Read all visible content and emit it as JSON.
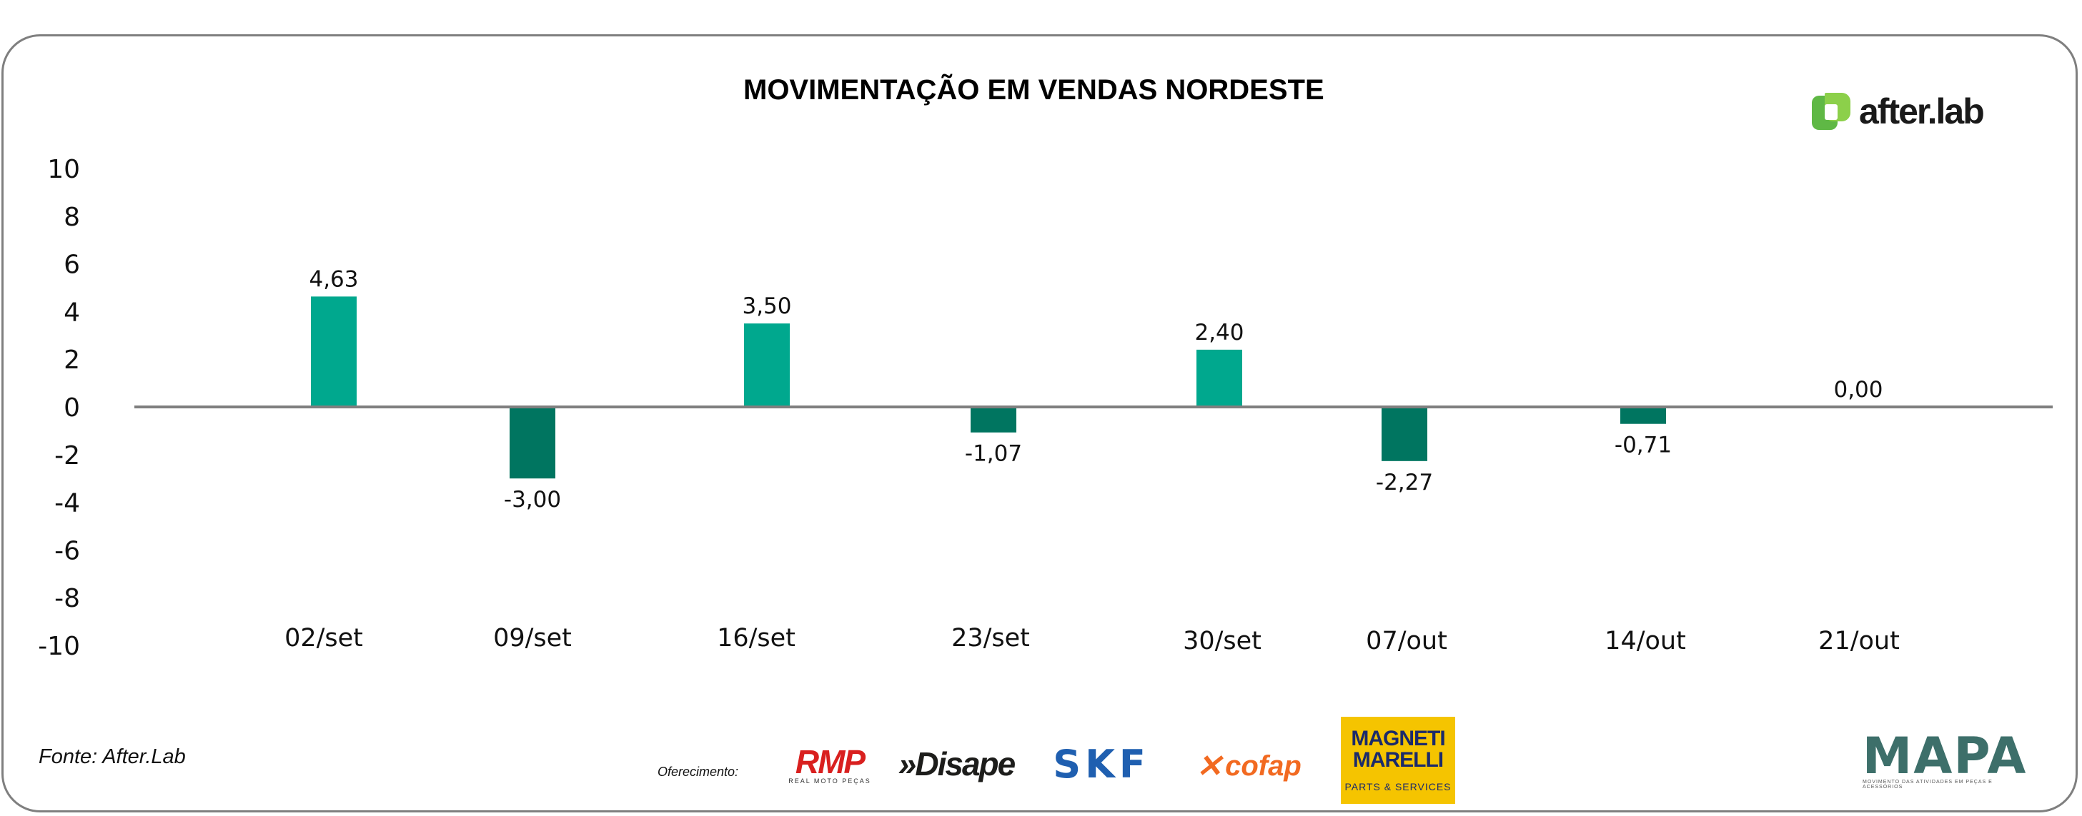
{
  "chart_data": {
    "type": "bar",
    "title": "MOVIMENTAÇÃO EM VENDAS NORDESTE",
    "categories": [
      "02/set",
      "09/set",
      "16/set",
      "23/set",
      "30/set",
      "07/out",
      "14/out",
      "21/out"
    ],
    "values": [
      4.63,
      -3.0,
      3.5,
      -1.07,
      2.4,
      -2.27,
      -0.71,
      0.0
    ],
    "value_labels": [
      "4,63",
      "-3,00",
      "3,50",
      "-1,07",
      "2,40",
      "-2,27",
      "-0,71",
      "0,00"
    ],
    "yticks": [
      10,
      8,
      6,
      4,
      2,
      0,
      -2,
      -4,
      -6,
      -8,
      -10
    ],
    "ylim": [
      -10,
      10
    ],
    "xlabel": "",
    "ylabel": "",
    "grid": false,
    "colors": {
      "positive": "#00a88e",
      "negative": "#007560",
      "axis": "#7f7f7f"
    }
  },
  "footer": {
    "source": "Fonte: After.Lab",
    "offer_label": "Oferecimento:"
  },
  "brand": {
    "logo_text": "after.lab"
  },
  "sponsors": {
    "rmp": "RMP",
    "rmp_tagline": "REAL MOTO PEÇAS",
    "disape": "»Disape",
    "skf": "SKF",
    "cofap": "cofap",
    "magneti": "MAGNETI MARELLI",
    "magneti_tagline": "PARTS & SERVICES",
    "mapa": "MAPA",
    "mapa_tagline": "MOVIMENTO DAS ATIVIDADES EM PEÇAS E ACESSÓRIOS"
  }
}
